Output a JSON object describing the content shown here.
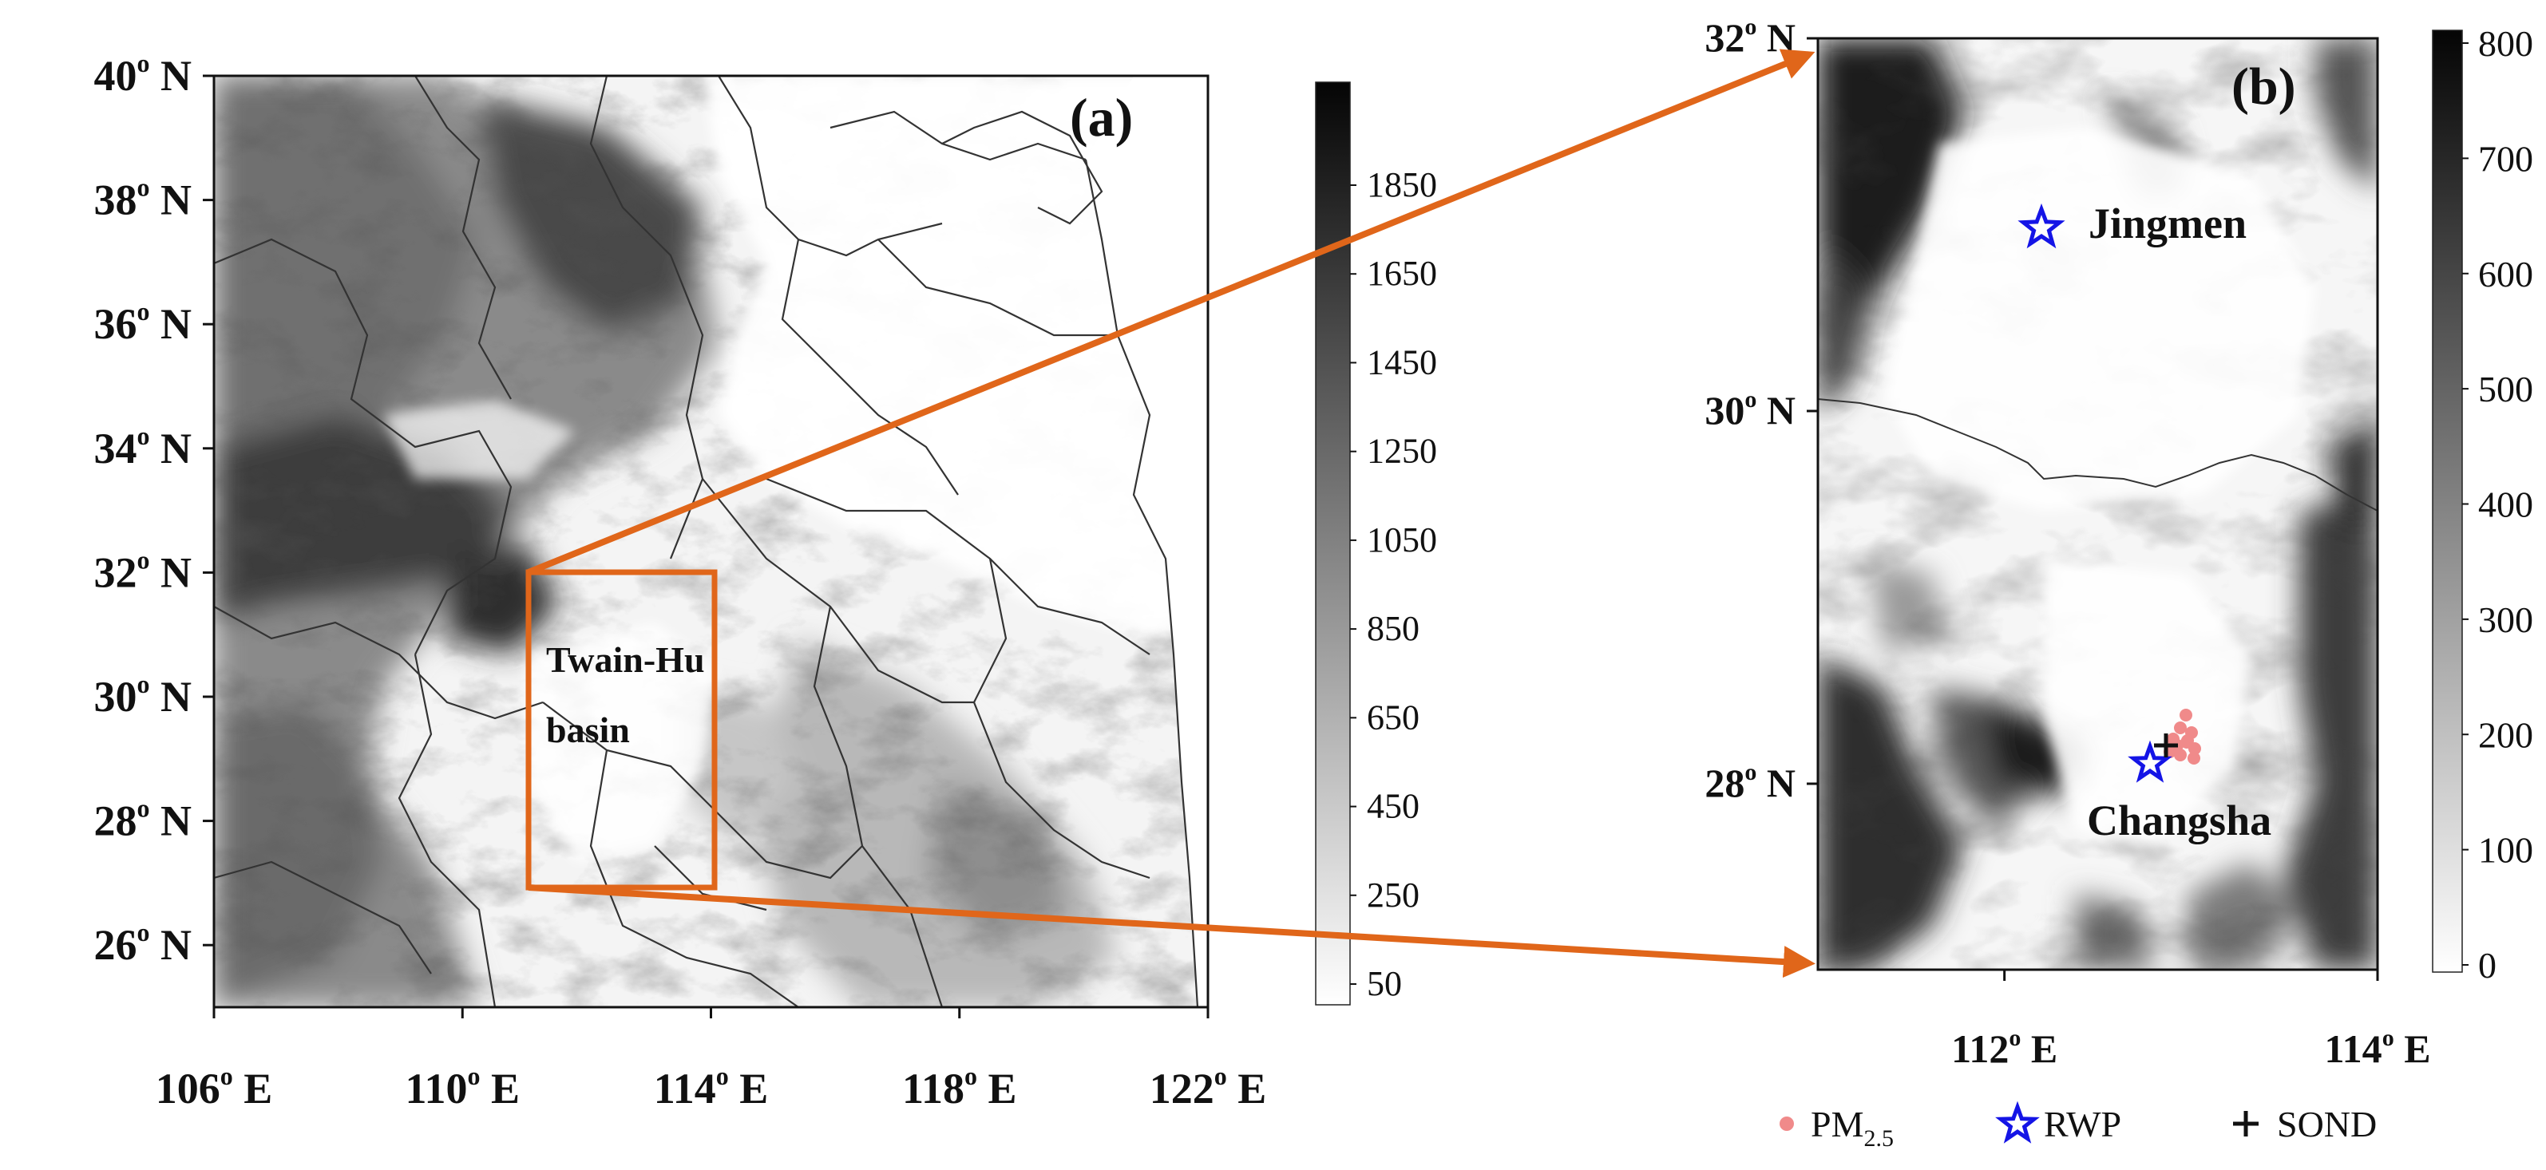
{
  "panel_a": {
    "label": "(a)",
    "lat_ticks": [
      "40",
      "38",
      "36",
      "34",
      "32",
      "30",
      "28",
      "26"
    ],
    "lon_ticks": [
      "106",
      "110",
      "114",
      "118",
      "122"
    ],
    "lat_suffix": "o N",
    "lon_suffix": "o E",
    "region_label_line1": "Twain-Hu",
    "region_label_line2": "basin",
    "colorbar_ticks": [
      "1850",
      "1650",
      "1450",
      "1250",
      "1050",
      "850",
      "650",
      "450",
      "250",
      "50"
    ]
  },
  "panel_b": {
    "label": "(b)",
    "lat_ticks": [
      "32",
      "30",
      "28"
    ],
    "lon_ticks": [
      "112",
      "114"
    ],
    "lat_suffix": "o N",
    "lon_suffix": "o E",
    "site_jingmen": "Jingmen",
    "site_changsha": "Changsha",
    "colorbar_ticks": [
      "800",
      "700",
      "600",
      "500",
      "400",
      "300",
      "200",
      "100",
      "0"
    ]
  },
  "legend": {
    "pm_main": "PM",
    "pm_sub": "2.5",
    "rwp": "RWP",
    "sond": "SOND"
  },
  "colors": {
    "arrow": "#e0661a",
    "star": "#1414e6",
    "pm_marker": "#f08a8a"
  }
}
